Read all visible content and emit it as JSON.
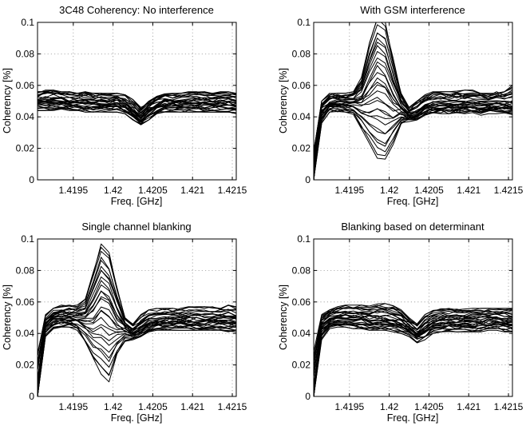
{
  "figure": {
    "width": 664,
    "height": 533
  },
  "chart_data": [
    {
      "type": "line",
      "title": "3C48 Coherency: No interference",
      "xlabel": "Freq. [GHz]",
      "ylabel": "Coherency [%]",
      "xlim": [
        1.41905,
        1.42155
      ],
      "ylim": [
        0,
        0.1
      ],
      "xticks": [
        1.4195,
        1.42,
        1.4205,
        1.421,
        1.4215
      ],
      "xtick_labels": [
        "1.4195",
        "1.42",
        "1.4205",
        "1.421",
        "1.4215"
      ],
      "yticks": [
        0,
        0.02,
        0.04,
        0.06,
        0.08,
        0.1
      ],
      "ytick_labels": [
        "0",
        "0.02",
        "0.04",
        "0.06",
        "0.08",
        "0.1"
      ],
      "grid": true,
      "x": [
        1.41905,
        1.41915,
        1.41925,
        1.41935,
        1.41945,
        1.41955,
        1.41965,
        1.41975,
        1.41985,
        1.41995,
        1.42005,
        1.42015,
        1.42025,
        1.42035,
        1.42045,
        1.42055,
        1.42065,
        1.42075,
        1.42085,
        1.42095,
        1.42105,
        1.42115,
        1.42125,
        1.42135,
        1.42145,
        1.42155
      ],
      "series_count": 30,
      "series_description": "Coherency of all baselines versus frequency",
      "envelope": {
        "upper": [
          0.056,
          0.057,
          0.057,
          0.056,
          0.056,
          0.055,
          0.056,
          0.055,
          0.055,
          0.055,
          0.055,
          0.054,
          0.051,
          0.046,
          0.05,
          0.054,
          0.055,
          0.055,
          0.055,
          0.056,
          0.056,
          0.056,
          0.055,
          0.056,
          0.056,
          0.055
        ],
        "median": [
          0.05,
          0.05,
          0.05,
          0.05,
          0.049,
          0.049,
          0.049,
          0.049,
          0.049,
          0.049,
          0.049,
          0.047,
          0.043,
          0.038,
          0.044,
          0.047,
          0.049,
          0.049,
          0.049,
          0.049,
          0.049,
          0.049,
          0.049,
          0.049,
          0.049,
          0.049
        ],
        "lower": [
          0.044,
          0.044,
          0.044,
          0.045,
          0.044,
          0.044,
          0.043,
          0.043,
          0.043,
          0.043,
          0.043,
          0.042,
          0.038,
          0.035,
          0.038,
          0.042,
          0.043,
          0.043,
          0.043,
          0.043,
          0.043,
          0.043,
          0.043,
          0.043,
          0.043,
          0.042
        ]
      }
    },
    {
      "type": "line",
      "title": "With GSM interference",
      "xlabel": "Freq. [GHz]",
      "ylabel": "Coherency [%]",
      "xlim": [
        1.41905,
        1.42155
      ],
      "ylim": [
        0,
        0.1
      ],
      "xticks": [
        1.4195,
        1.42,
        1.4205,
        1.421,
        1.4215
      ],
      "xtick_labels": [
        "1.4195",
        "1.42",
        "1.4205",
        "1.421",
        "1.4215"
      ],
      "yticks": [
        0,
        0.02,
        0.04,
        0.06,
        0.08,
        0.1
      ],
      "ytick_labels": [
        "0",
        "0.02",
        "0.04",
        "0.06",
        "0.08",
        "0.1"
      ],
      "grid": true,
      "x": [
        1.41905,
        1.41915,
        1.41925,
        1.41935,
        1.41945,
        1.41955,
        1.41965,
        1.41975,
        1.41985,
        1.41995,
        1.42005,
        1.42015,
        1.42025,
        1.42035,
        1.42045,
        1.42055,
        1.42065,
        1.42075,
        1.42085,
        1.42095,
        1.42105,
        1.42115,
        1.42125,
        1.42135,
        1.42145,
        1.42155
      ],
      "series_count": 30,
      "series_description": "Coherency of all baselines; strong GSM interference peak near 1.42 GHz",
      "envelope": {
        "upper": [
          0.02,
          0.05,
          0.055,
          0.055,
          0.055,
          0.056,
          0.065,
          0.088,
          0.105,
          0.102,
          0.078,
          0.055,
          0.046,
          0.05,
          0.054,
          0.056,
          0.056,
          0.056,
          0.057,
          0.057,
          0.057,
          0.056,
          0.055,
          0.056,
          0.056,
          0.06
        ],
        "median": [
          0.0,
          0.044,
          0.048,
          0.049,
          0.049,
          0.049,
          0.05,
          0.055,
          0.062,
          0.058,
          0.05,
          0.045,
          0.041,
          0.043,
          0.046,
          0.047,
          0.048,
          0.048,
          0.048,
          0.048,
          0.048,
          0.048,
          0.048,
          0.048,
          0.048,
          0.047
        ],
        "lower": [
          0.0,
          0.036,
          0.043,
          0.043,
          0.043,
          0.041,
          0.032,
          0.022,
          0.012,
          0.01,
          0.022,
          0.035,
          0.037,
          0.038,
          0.041,
          0.042,
          0.042,
          0.042,
          0.042,
          0.042,
          0.042,
          0.041,
          0.042,
          0.042,
          0.041,
          0.041
        ]
      }
    },
    {
      "type": "line",
      "title": "Single channel blanking",
      "xlabel": "Freq. [GHz]",
      "ylabel": "Coherency [%]",
      "xlim": [
        1.41905,
        1.42155
      ],
      "ylim": [
        0,
        0.1
      ],
      "xticks": [
        1.4195,
        1.42,
        1.4205,
        1.421,
        1.4215
      ],
      "xtick_labels": [
        "1.4195",
        "1.42",
        "1.4205",
        "1.421",
        "1.4215"
      ],
      "yticks": [
        0,
        0.02,
        0.04,
        0.06,
        0.08,
        0.1
      ],
      "ytick_labels": [
        "0",
        "0.02",
        "0.04",
        "0.06",
        "0.08",
        "0.1"
      ],
      "grid": true,
      "x": [
        1.41905,
        1.41915,
        1.41925,
        1.41935,
        1.41945,
        1.41955,
        1.41965,
        1.41975,
        1.41985,
        1.41995,
        1.42005,
        1.42015,
        1.42025,
        1.42035,
        1.42045,
        1.42055,
        1.42065,
        1.42075,
        1.42085,
        1.42095,
        1.42105,
        1.42115,
        1.42125,
        1.42135,
        1.42145,
        1.42155
      ],
      "series_count": 30,
      "series_description": "Coherency of all baselines after single channel blanking; residual peak near 1.42 GHz",
      "envelope": {
        "upper": [
          0.03,
          0.052,
          0.056,
          0.058,
          0.058,
          0.058,
          0.062,
          0.08,
          0.098,
          0.092,
          0.07,
          0.05,
          0.046,
          0.052,
          0.055,
          0.056,
          0.056,
          0.056,
          0.056,
          0.057,
          0.057,
          0.057,
          0.057,
          0.057,
          0.058,
          0.057
        ],
        "median": [
          0.0,
          0.045,
          0.049,
          0.05,
          0.05,
          0.05,
          0.05,
          0.052,
          0.06,
          0.056,
          0.048,
          0.043,
          0.04,
          0.043,
          0.046,
          0.047,
          0.048,
          0.048,
          0.048,
          0.048,
          0.048,
          0.048,
          0.048,
          0.048,
          0.048,
          0.048
        ],
        "lower": [
          0.0,
          0.038,
          0.043,
          0.044,
          0.044,
          0.042,
          0.033,
          0.022,
          0.013,
          0.008,
          0.025,
          0.035,
          0.036,
          0.038,
          0.041,
          0.042,
          0.042,
          0.042,
          0.042,
          0.042,
          0.042,
          0.042,
          0.042,
          0.042,
          0.041,
          0.041
        ]
      }
    },
    {
      "type": "line",
      "title": "Blanking based on determinant",
      "xlabel": "Freq. [GHz]",
      "ylabel": "Coherency [%]",
      "xlim": [
        1.41905,
        1.42155
      ],
      "ylim": [
        0,
        0.1
      ],
      "xticks": [
        1.4195,
        1.42,
        1.4205,
        1.421,
        1.4215
      ],
      "xtick_labels": [
        "1.4195",
        "1.42",
        "1.4205",
        "1.421",
        "1.4215"
      ],
      "yticks": [
        0,
        0.02,
        0.04,
        0.06,
        0.08,
        0.1
      ],
      "ytick_labels": [
        "0",
        "0.02",
        "0.04",
        "0.06",
        "0.08",
        "0.1"
      ],
      "grid": true,
      "x": [
        1.41905,
        1.41915,
        1.41925,
        1.41935,
        1.41945,
        1.41955,
        1.41965,
        1.41975,
        1.41985,
        1.41995,
        1.42005,
        1.42015,
        1.42025,
        1.42035,
        1.42045,
        1.42055,
        1.42065,
        1.42075,
        1.42085,
        1.42095,
        1.42105,
        1.42115,
        1.42125,
        1.42135,
        1.42145,
        1.42155
      ],
      "series_count": 30,
      "series_description": "Coherency of all baselines after determinant-based blanking",
      "envelope": {
        "upper": [
          0.03,
          0.052,
          0.055,
          0.057,
          0.058,
          0.058,
          0.058,
          0.058,
          0.059,
          0.059,
          0.058,
          0.055,
          0.05,
          0.046,
          0.052,
          0.055,
          0.056,
          0.056,
          0.056,
          0.056,
          0.056,
          0.056,
          0.056,
          0.056,
          0.056,
          0.056
        ],
        "median": [
          0.0,
          0.045,
          0.049,
          0.05,
          0.05,
          0.05,
          0.05,
          0.049,
          0.049,
          0.049,
          0.048,
          0.047,
          0.044,
          0.04,
          0.044,
          0.047,
          0.048,
          0.048,
          0.048,
          0.048,
          0.048,
          0.049,
          0.049,
          0.049,
          0.048,
          0.048
        ],
        "lower": [
          0.0,
          0.036,
          0.043,
          0.044,
          0.044,
          0.043,
          0.043,
          0.042,
          0.042,
          0.042,
          0.041,
          0.04,
          0.038,
          0.034,
          0.036,
          0.04,
          0.041,
          0.041,
          0.041,
          0.041,
          0.041,
          0.041,
          0.042,
          0.042,
          0.041,
          0.041
        ]
      }
    }
  ]
}
